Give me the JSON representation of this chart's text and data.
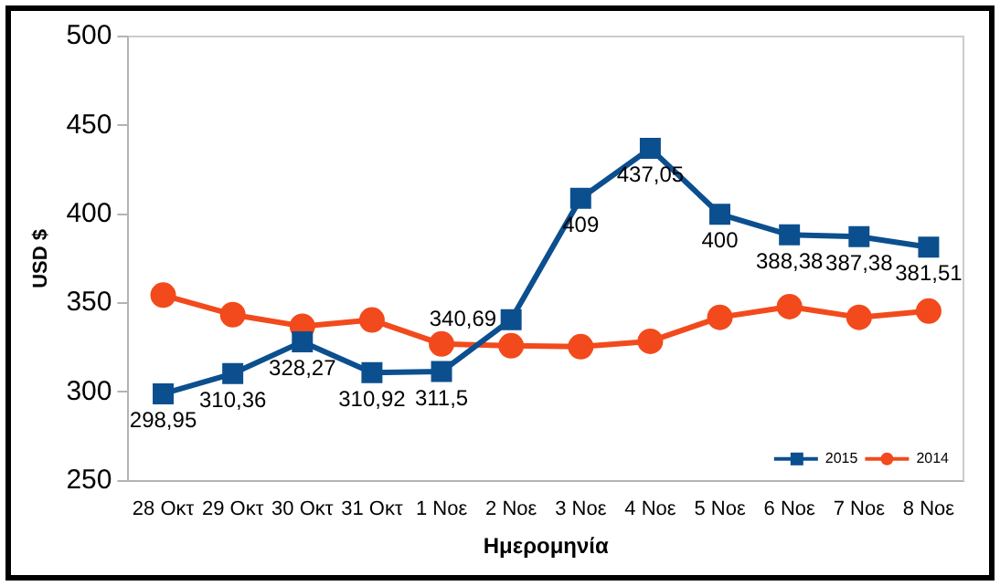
{
  "chart_data": {
    "type": "line",
    "xlabel": "Ημερομηνία",
    "ylabel": "USD $",
    "categories": [
      "28 Οκτ",
      "29 Οκτ",
      "30 Οκτ",
      "31 Οκτ",
      "1 Νοε",
      "2 Νοε",
      "3 Νοε",
      "4 Νοε",
      "5 Νοε",
      "6 Νοε",
      "7 Νοε",
      "8 Νοε"
    ],
    "series": [
      {
        "name": "2015",
        "color": "#0b4f8f",
        "marker": "square",
        "values": [
          298.95,
          310.36,
          328.27,
          310.92,
          311.5,
          340.69,
          409,
          437.05,
          400,
          388.38,
          387.38,
          381.51
        ],
        "value_labels": [
          "298,95",
          "310,36",
          "328,27",
          "310,92",
          "311,5",
          "340,69",
          "409",
          "437,05",
          "400",
          "388,38",
          "387,38",
          "381,51"
        ]
      },
      {
        "name": "2014",
        "color": "#f24a1c",
        "marker": "circle",
        "values": [
          354.5,
          343.5,
          337,
          340.5,
          327,
          326,
          325.5,
          328.5,
          342,
          348,
          342,
          345.5
        ]
      }
    ],
    "ylim": [
      250,
      500
    ],
    "yticks": [
      250,
      300,
      350,
      400,
      450,
      500
    ],
    "grid": false,
    "legend": "bottom right"
  }
}
